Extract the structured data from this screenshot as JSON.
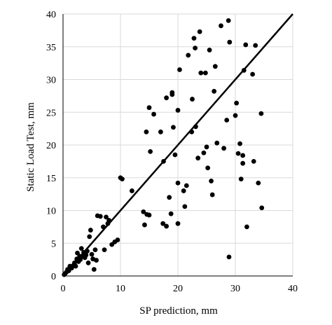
{
  "chart_data": {
    "type": "scatter",
    "title": "",
    "xlabel": "SP prediction, mm",
    "ylabel": "Static Load Test, mm",
    "xlim": [
      0,
      40
    ],
    "ylim": [
      0,
      40
    ],
    "xticks": [
      0,
      10,
      20,
      30,
      40
    ],
    "yticks": [
      0,
      5,
      10,
      15,
      20,
      25,
      30,
      35,
      40
    ],
    "grid": true,
    "legend": "none",
    "colors": {
      "points": "#000000",
      "line": "#000000",
      "grid": "#d9d9d9",
      "axis": "#000000"
    },
    "series": [
      {
        "points": [
          [
            0.2,
            0.2
          ],
          [
            0.4,
            0.4
          ],
          [
            0.6,
            0.6
          ],
          [
            0.8,
            1.0
          ],
          [
            1.0,
            0.8
          ],
          [
            1.2,
            1.5
          ],
          [
            1.5,
            1.2
          ],
          [
            1.8,
            1.6
          ],
          [
            2.0,
            2.0
          ],
          [
            2.2,
            1.5
          ],
          [
            2.4,
            2.6
          ],
          [
            2.5,
            3.5
          ],
          [
            2.7,
            2.2
          ],
          [
            2.9,
            3.0
          ],
          [
            3.0,
            2.5
          ],
          [
            3.2,
            4.2
          ],
          [
            3.4,
            3.0
          ],
          [
            3.6,
            3.6
          ],
          [
            3.8,
            2.8
          ],
          [
            4.0,
            3.2
          ],
          [
            4.2,
            3.8
          ],
          [
            4.4,
            2.0
          ],
          [
            4.6,
            6.0
          ],
          [
            4.8,
            7.0
          ],
          [
            5.0,
            3.3
          ],
          [
            5.2,
            2.6
          ],
          [
            5.4,
            1.0
          ],
          [
            5.6,
            4.0
          ],
          [
            5.8,
            2.4
          ],
          [
            6.0,
            9.2
          ],
          [
            6.5,
            9.1
          ],
          [
            7.0,
            7.5
          ],
          [
            7.5,
            9.0
          ],
          [
            7.8,
            8.0
          ],
          [
            8.0,
            8.5
          ],
          [
            7.2,
            4.0
          ],
          [
            8.5,
            4.8
          ],
          [
            9.0,
            5.2
          ],
          [
            9.5,
            5.5
          ],
          [
            10.0,
            15.0
          ],
          [
            10.3,
            14.8
          ],
          [
            12.0,
            13.0
          ],
          [
            14.0,
            9.8
          ],
          [
            14.2,
            7.8
          ],
          [
            14.6,
            9.4
          ],
          [
            15.0,
            9.3
          ],
          [
            14.5,
            22.0
          ],
          [
            15.0,
            25.7
          ],
          [
            15.2,
            19.0
          ],
          [
            15.8,
            24.7
          ],
          [
            17.0,
            22.0
          ],
          [
            17.5,
            17.5
          ],
          [
            17.4,
            8.0
          ],
          [
            18.0,
            7.6
          ],
          [
            18.0,
            27.2
          ],
          [
            18.5,
            12.0
          ],
          [
            18.8,
            9.5
          ],
          [
            19.0,
            27.7
          ],
          [
            19.2,
            22.7
          ],
          [
            19.5,
            18.5
          ],
          [
            19.0,
            28.0
          ],
          [
            20.0,
            25.3
          ],
          [
            20.0,
            14.2
          ],
          [
            20.0,
            8.0
          ],
          [
            20.3,
            31.5
          ],
          [
            21.0,
            13.0
          ],
          [
            21.2,
            10.6
          ],
          [
            21.5,
            13.8
          ],
          [
            21.8,
            33.7
          ],
          [
            22.5,
            27.0
          ],
          [
            22.4,
            22.0
          ],
          [
            22.8,
            36.3
          ],
          [
            23.0,
            34.8
          ],
          [
            23.1,
            22.8
          ],
          [
            23.5,
            18.0
          ],
          [
            23.8,
            37.3
          ],
          [
            24.0,
            31.0
          ],
          [
            24.5,
            18.8
          ],
          [
            24.8,
            31.0
          ],
          [
            25.0,
            19.7
          ],
          [
            25.2,
            16.5
          ],
          [
            25.8,
            14.5
          ],
          [
            25.5,
            34.5
          ],
          [
            26.0,
            12.4
          ],
          [
            26.5,
            32.0
          ],
          [
            26.3,
            28.2
          ],
          [
            26.8,
            20.3
          ],
          [
            27.5,
            38.2
          ],
          [
            28.0,
            19.5
          ],
          [
            28.5,
            23.8
          ],
          [
            28.8,
            39.0
          ],
          [
            28.9,
            2.9
          ],
          [
            29.0,
            35.7
          ],
          [
            30.0,
            24.5
          ],
          [
            30.2,
            26.4
          ],
          [
            30.5,
            18.7
          ],
          [
            30.8,
            20.2
          ],
          [
            31.0,
            14.8
          ],
          [
            31.3,
            18.4
          ],
          [
            31.5,
            31.4
          ],
          [
            31.3,
            17.2
          ],
          [
            31.8,
            35.3
          ],
          [
            32.0,
            7.5
          ],
          [
            33.0,
            30.8
          ],
          [
            33.5,
            35.2
          ],
          [
            34.0,
            14.2
          ],
          [
            33.2,
            17.5
          ],
          [
            34.5,
            24.8
          ],
          [
            34.6,
            10.4
          ]
        ]
      }
    ],
    "fit_line": [
      [
        0,
        0
      ],
      [
        40,
        40
      ]
    ]
  }
}
